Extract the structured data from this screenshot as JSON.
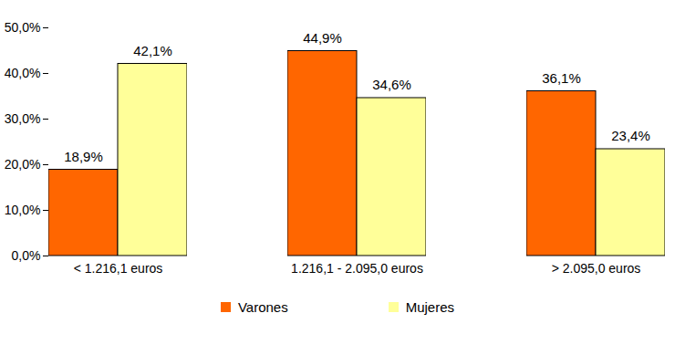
{
  "chart_data": {
    "type": "bar",
    "categories": [
      "< 1.216,1 euros",
      "1.216,1 - 2.095,0 euros",
      "> 2.095,0 euros"
    ],
    "series": [
      {
        "name": "Varones",
        "color": "#ff6600",
        "values": [
          18.9,
          44.9,
          36.1
        ],
        "value_labels": [
          "18,9%",
          "44,9%",
          "36,1%"
        ]
      },
      {
        "name": "Mujeres",
        "color": "#ffff99",
        "values": [
          42.1,
          34.6,
          23.4
        ],
        "value_labels": [
          "42,1%",
          "34,6%",
          "23,4%"
        ]
      }
    ],
    "ylim": [
      0,
      50
    ],
    "yticks": [
      {
        "value": 0,
        "label": "0,0%"
      },
      {
        "value": 10,
        "label": "10,0%"
      },
      {
        "value": 20,
        "label": "20,0%"
      },
      {
        "value": 30,
        "label": "30,0%"
      },
      {
        "value": 40,
        "label": "40,0%"
      },
      {
        "value": 50,
        "label": "50,0%"
      }
    ],
    "grid": false,
    "data_labels": true,
    "legend": "bottom"
  }
}
